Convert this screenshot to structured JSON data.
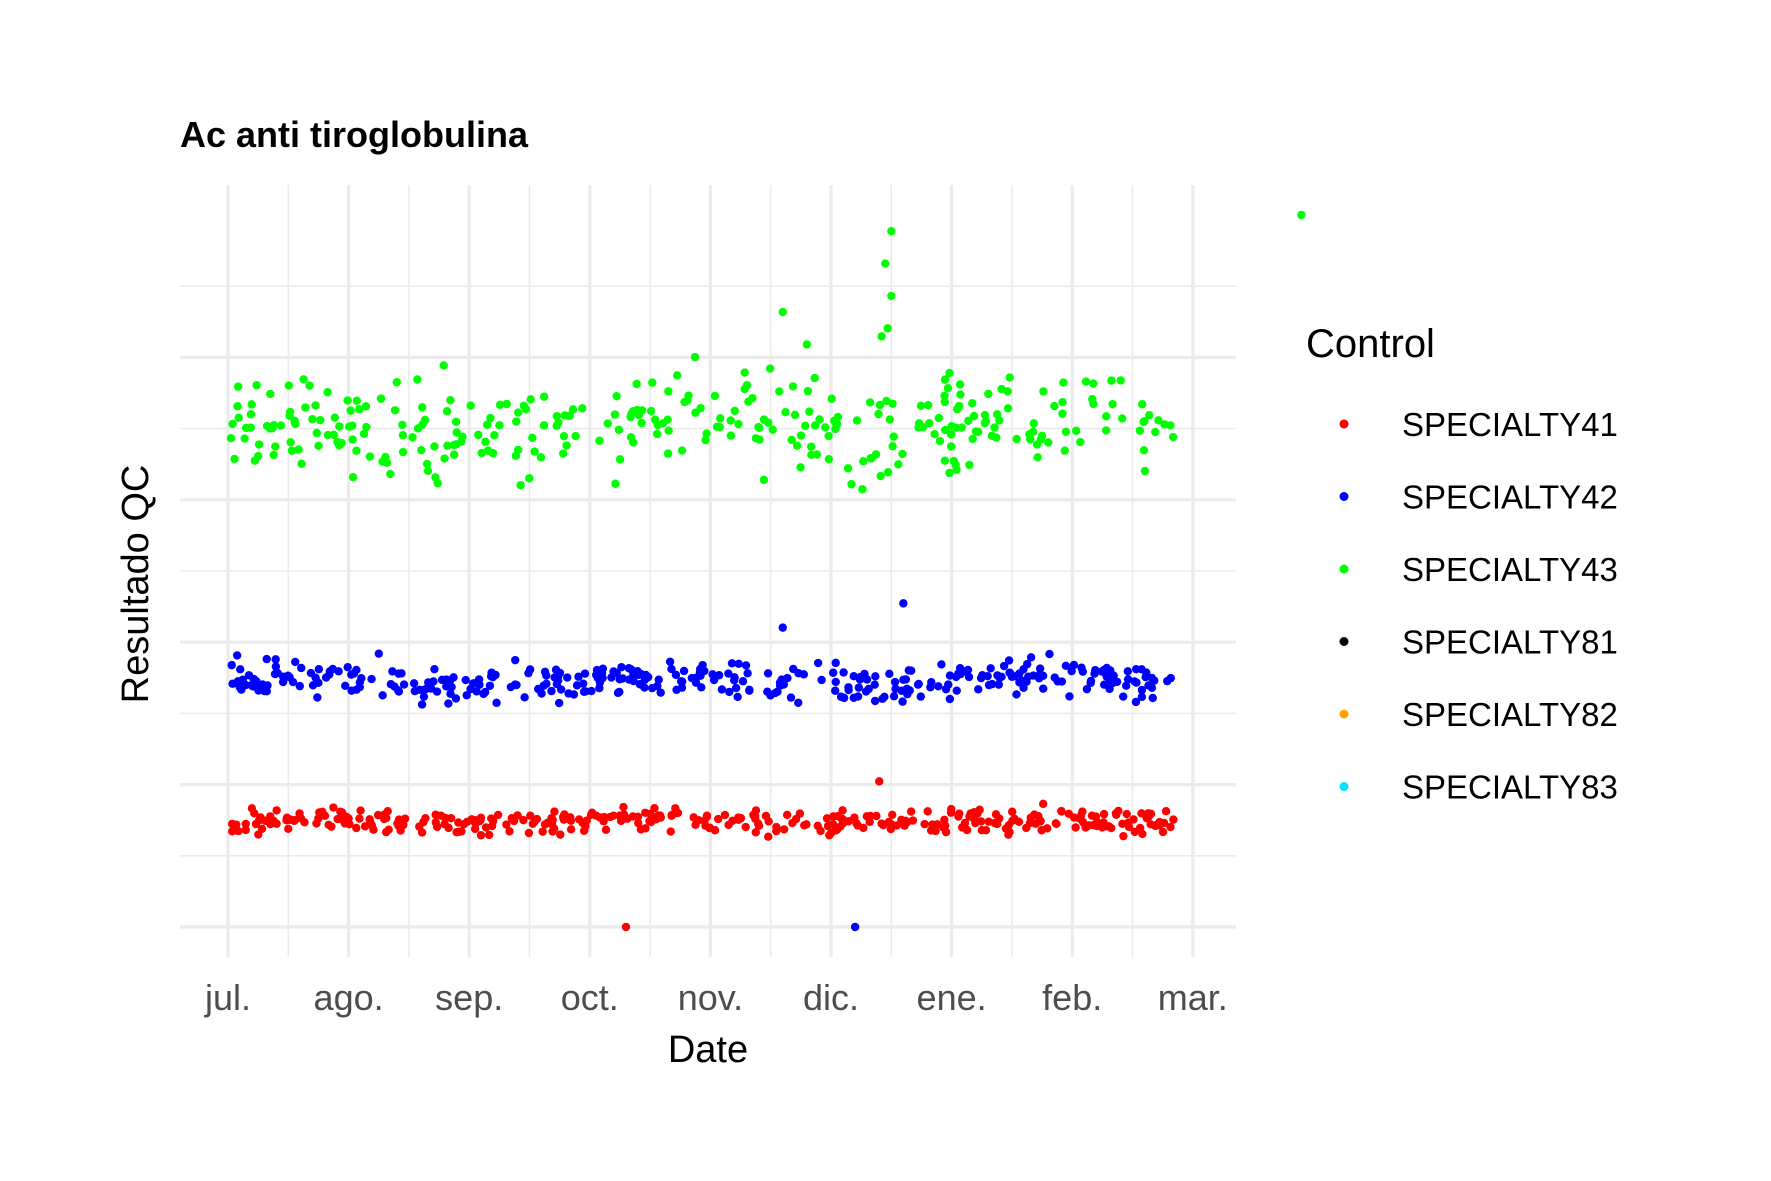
{
  "chart_data": {
    "type": "scatter",
    "title": "Ac anti tiroglobulina",
    "xlabel": "Date",
    "ylabel": "Resultado QC",
    "x_ticks": [
      "jul.",
      "ago.",
      "sep.",
      "oct.",
      "nov.",
      "dic.",
      "ene.",
      "feb.",
      "mar."
    ],
    "y_tick_labels_shown": false,
    "grid": true,
    "legend": {
      "title": "Control",
      "position": "right",
      "entries": [
        {
          "name": "SPECIALTY41",
          "color": "#ff0000"
        },
        {
          "name": "SPECIALTY42",
          "color": "#0000ff"
        },
        {
          "name": "SPECIALTY43",
          "color": "#00ff00"
        },
        {
          "name": "SPECIALTY81",
          "color": "#000000"
        },
        {
          "name": "SPECIALTY82",
          "color": "#ffa500"
        },
        {
          "name": "SPECIALTY83",
          "color": "#00e5ff"
        }
      ]
    },
    "series": [
      {
        "name": "SPECIALTY43",
        "color": "#00ff00",
        "level": 0.62,
        "spread": 0.045,
        "outliers": [
          [
            5.5,
            0.86
          ],
          [
            5.45,
            0.82
          ],
          [
            5.5,
            0.78
          ],
          [
            4.6,
            0.76
          ],
          [
            4.8,
            0.72
          ],
          [
            5.42,
            0.73
          ],
          [
            5.47,
            0.74
          ],
          [
            8.9,
            0.88
          ]
        ]
      },
      {
        "name": "SPECIALTY42",
        "color": "#0000ff",
        "level": 0.305,
        "spread": 0.018,
        "outliers": [
          [
            5.6,
            0.4
          ],
          [
            4.6,
            0.37
          ],
          [
            5.2,
            0.0
          ]
        ]
      },
      {
        "name": "SPECIALTY41",
        "color": "#ff0000",
        "level": 0.13,
        "spread": 0.012,
        "outliers": [
          [
            3.3,
            0.0
          ],
          [
            5.4,
            0.18
          ]
        ]
      }
    ]
  }
}
